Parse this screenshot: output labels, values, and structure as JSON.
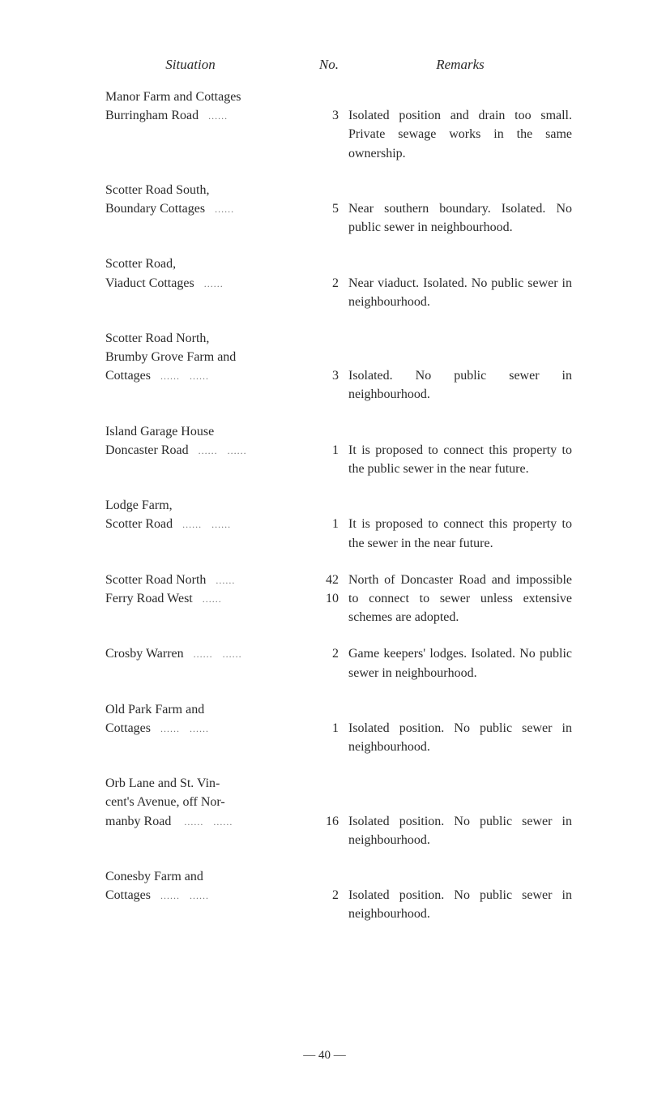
{
  "headers": {
    "situation": "Situation",
    "no": "No.",
    "remarks": "Remarks"
  },
  "entries": [
    {
      "situation_lines": [
        "Manor Farm and Cottages",
        "Burringham Road"
      ],
      "dots_on_last": true,
      "no": "3",
      "remarks": "Isolated position and drain too small. Private sewage works in the same ownership."
    },
    {
      "situation_lines": [
        "Scotter Road South,",
        "Boundary Cottages"
      ],
      "dots_on_last": true,
      "no": "5",
      "remarks": "Near southern boundary. Isolated. No public sewer in neighbourhood."
    },
    {
      "situation_lines": [
        "Scotter Road,",
        "Viaduct Cottages"
      ],
      "dots_on_last": true,
      "no": "2",
      "remarks": "Near viaduct. Isolated. No public sewer in neighbourhood."
    },
    {
      "situation_lines": [
        "Scotter Road North,",
        "Brumby Grove Farm and",
        "Cottages"
      ],
      "dots_on_last": true,
      "dots_double": true,
      "no": "3",
      "remarks": "Isolated. No public sewer in neighbourhood."
    },
    {
      "situation_lines": [
        "Island Garage House",
        "Doncaster Road"
      ],
      "dots_on_last": true,
      "dots_double": true,
      "no": "1",
      "remarks": "It is proposed to connect this property to the public sewer in the near future."
    },
    {
      "situation_lines": [
        "Lodge Farm,",
        "Scotter Road"
      ],
      "dots_on_last": true,
      "dots_double": true,
      "no": "1",
      "remarks": "It is proposed to connect this property to the sewer in the near future."
    },
    {
      "situation_lines": [
        "Scotter Road North",
        "Ferry Road West"
      ],
      "dots_on_last": false,
      "nos": [
        "42",
        "10"
      ],
      "remarks": "North of Doncaster Road and impossible to connect to sewer unless extensive schemes are adopted."
    },
    {
      "situation_lines": [
        "Crosby Warren"
      ],
      "dots_on_last": true,
      "dots_double": true,
      "no": "2",
      "remarks": "Game keepers' lodges. Isolated. No public sewer in neighbourhood."
    },
    {
      "situation_lines": [
        "Old Park Farm and",
        "Cottages"
      ],
      "dots_on_last": true,
      "dots_double": true,
      "no": "1",
      "remarks": "Isolated position. No public sewer in neighbourhood."
    },
    {
      "situation_lines": [
        "Orb Lane and St. Vincent's Avenue, off Normanby Road"
      ],
      "dots_on_last": true,
      "dots_double": true,
      "wrap": true,
      "no": "16",
      "remarks": "Isolated position. No public sewer in neighbourhood."
    },
    {
      "situation_lines": [
        "Conesby Farm and",
        "Cottages"
      ],
      "dots_on_last": true,
      "dots_double": true,
      "no": "2",
      "remarks": "Isolated position. No public sewer in neighbourhood."
    }
  ],
  "page_number": "— 40 —",
  "colors": {
    "background": "#ffffff",
    "text": "#2a2a2a"
  },
  "typography": {
    "body_font_size": 16,
    "header_font_size": 17,
    "font_family": "Georgia, Times New Roman, serif"
  }
}
